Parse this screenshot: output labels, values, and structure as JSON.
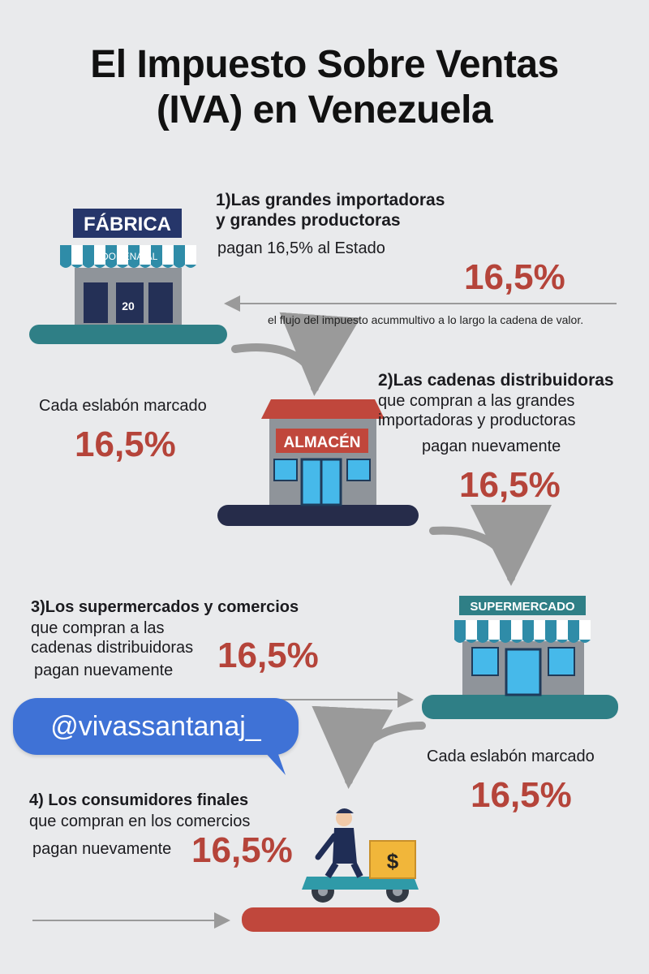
{
  "title": {
    "line1": "El Impuesto Sobre Ventas",
    "line2": "(IVA) en Venezuela"
  },
  "buildings": {
    "factory_sign": "FÁBRICA",
    "factory_awning": "ÍDORENAIAL",
    "factory_door_number": "20",
    "warehouse_sign": "ALMACÉN",
    "supermarket_sign": "SUPERMERCADO",
    "delivery_box_symbol": "$"
  },
  "step1": {
    "title_line1": "1)Las grandes importadoras",
    "title_line2": "y grandes productoras",
    "desc": "pagan 16,5% al Estado",
    "rate": "16,5%",
    "flow_note": "el flujo del impuesto acummultivo a lo largo la cadena de valor."
  },
  "side_left": {
    "label": "Cada eslabón marcado",
    "rate": "16,5%"
  },
  "step2": {
    "title_line1": "2)Las cadenas distribuidoras",
    "desc_line1": "que compran a las grandes",
    "desc_line2": "importadoras y productoras",
    "desc_line3": "pagan nuevamente",
    "rate": "16,5%"
  },
  "step3": {
    "title_line1": "3)Los supermercados y comercios",
    "desc_line1": "que compran a las",
    "desc_line2": "cadenas distribuidoras",
    "desc_line3": "pagan nuevamente",
    "rate": "16,5%"
  },
  "handle": "@vivassantanaj_",
  "side_right": {
    "label": "Cada eslabón marcado",
    "rate": "16,5%"
  },
  "step4": {
    "title_line1": "4) Los consumidores finales",
    "desc_line1": "que compran en los comercios",
    "desc_line2": "pagan nuevamente",
    "rate": "16,5%"
  },
  "colors": {
    "background": "#e9eaec",
    "accent_red": "#b5443a",
    "teal": "#2f7f86",
    "navy": "#262c4a",
    "bubble_blue": "#3f72d6"
  }
}
